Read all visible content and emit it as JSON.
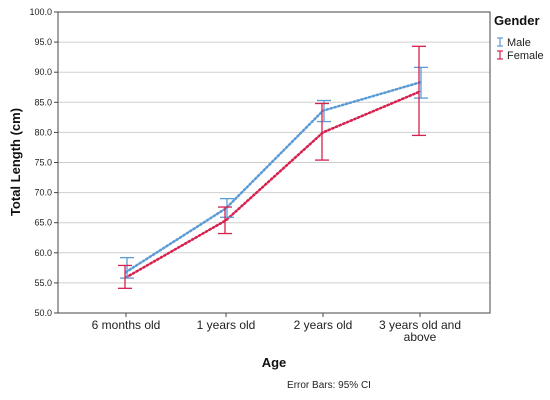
{
  "chart_data": {
    "type": "line",
    "categories": [
      "6 months old",
      "1 years old",
      "2 years old",
      "3 years old and above"
    ],
    "category_lines": [
      [
        "6 months old"
      ],
      [
        "1 years old"
      ],
      [
        "2 years old"
      ],
      [
        "3 years old and",
        "above"
      ]
    ],
    "xlabel": "Age",
    "ylabel": "Total Length (cm)",
    "ylim": [
      50,
      100
    ],
    "yticks": [
      "50.0",
      "55.0",
      "60.0",
      "65.0",
      "70.0",
      "75.0",
      "80.0",
      "85.0",
      "90.0",
      "95.0",
      "100.0"
    ],
    "grid": true,
    "legend": {
      "title": "Gender",
      "position": "top-right"
    },
    "series": [
      {
        "name": "Male",
        "color": "#5b9bd5",
        "values": [
          56.8,
          67.4,
          83.6,
          88.3
        ],
        "ci_low": [
          55.8,
          65.9,
          81.8,
          85.7
        ],
        "ci_high": [
          59.2,
          69.0,
          85.3,
          90.8
        ]
      },
      {
        "name": "Female",
        "color": "#d6204e",
        "values": [
          55.9,
          65.4,
          80.0,
          86.8
        ],
        "ci_low": [
          54.1,
          63.2,
          75.4,
          79.5
        ],
        "ci_high": [
          57.9,
          67.6,
          84.8,
          94.3
        ]
      }
    ],
    "footnote": "Error Bars: 95% CI"
  }
}
